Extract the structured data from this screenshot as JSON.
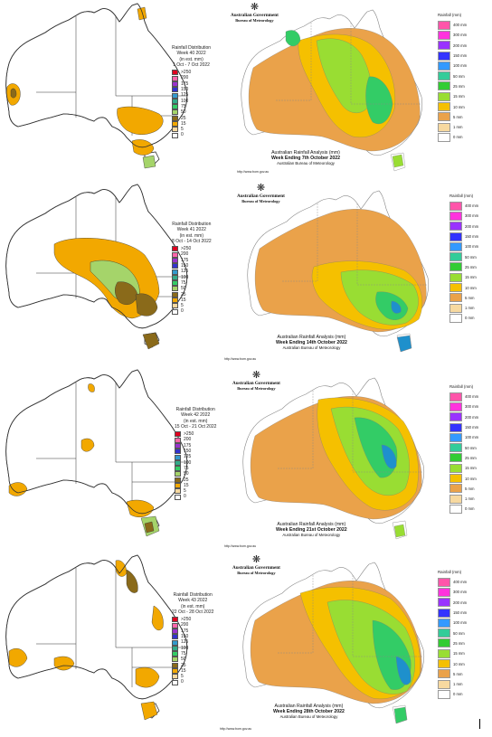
{
  "colors": {
    "outline": "#333333",
    "dist_lt25": "#f2a800",
    "dist_25_50": "#a5d46a",
    "dist_50_100": "#8a6a1a",
    "right_land": "#ffffff",
    "right_1": "#f7d9a0",
    "right_5": "#eaa24a",
    "right_10": "#f5c000",
    "right_25": "#99dd33",
    "right_50": "#33cc66",
    "right_100": "#1e90cc",
    "right_200": "#3355cc"
  },
  "gov": {
    "crest": "❋",
    "name": "Australian Government",
    "bureau": "Bureau of Meteorology"
  },
  "analysis": {
    "title": "Australian Rainfall Analysis (mm)",
    "sub": "Australian Bureau of Meteorology",
    "url": "http://www.bom.gov.au"
  },
  "legend_right": {
    "title": "Rainfall (mm)",
    "items": [
      {
        "label": "400 mm",
        "color": "#ff55aa"
      },
      {
        "label": "300 mm",
        "color": "#ff33dd"
      },
      {
        "label": "200 mm",
        "color": "#9933ff"
      },
      {
        "label": "150 mm",
        "color": "#3333ff"
      },
      {
        "label": "100 mm",
        "color": "#3399ff"
      },
      {
        "label": "50 mm",
        "color": "#33cc99"
      },
      {
        "label": "25 mm",
        "color": "#33cc33"
      },
      {
        "label": "15 mm",
        "color": "#99dd33"
      },
      {
        "label": "10 mm",
        "color": "#f5c000"
      },
      {
        "label": "5 mm",
        "color": "#eaa24a"
      },
      {
        "label": "1 mm",
        "color": "#f7d9a0"
      },
      {
        "label": "0 mm",
        "color": "#ffffff"
      }
    ]
  },
  "legend_left_scale": [
    {
      "label": ">250",
      "color": "#e00020"
    },
    {
      "label": "200",
      "color": "#ff66aa"
    },
    {
      "label": "175",
      "color": "#9933cc"
    },
    {
      "label": "150",
      "color": "#3333cc"
    },
    {
      "label": "125",
      "color": "#3399cc"
    },
    {
      "label": "100",
      "color": "#33aa88"
    },
    {
      "label": "75",
      "color": "#33cc66"
    },
    {
      "label": "50",
      "color": "#a5d46a"
    },
    {
      "label": "25",
      "color": "#8a6a1a"
    },
    {
      "label": "15",
      "color": "#f2a800"
    },
    {
      "label": "5",
      "color": "#f7d9a0"
    },
    {
      "label": "0",
      "color": "#ffffff"
    }
  ],
  "weeks": [
    {
      "dist_title": "Rainfall Distribution",
      "dist_week": "Week 40 2022",
      "dist_units": "(in est. mm)",
      "dist_dates": "1 Oct - 7 Oct 2022",
      "week_ending": "Week Ending 7th October 2022"
    },
    {
      "dist_title": "Rainfall Distribution",
      "dist_week": "Week 41 2022",
      "dist_units": "(in est. mm)",
      "dist_dates": "8 Oct - 14 Oct 2022",
      "week_ending": "Week Ending 14th October 2022"
    },
    {
      "dist_title": "Rainfall Distribution",
      "dist_week": "Week 42 2022",
      "dist_units": "(in est. mm)",
      "dist_dates": "15 Oct - 21 Oct 2022",
      "week_ending": "Week Ending 21st October 2022"
    },
    {
      "dist_title": "Rainfall Distribution",
      "dist_week": "Week 43 2022",
      "dist_units": "(in est. mm)",
      "dist_dates": "22 Oct - 28 Oct 2022",
      "week_ending": "Week Ending 28th October 2022"
    }
  ]
}
